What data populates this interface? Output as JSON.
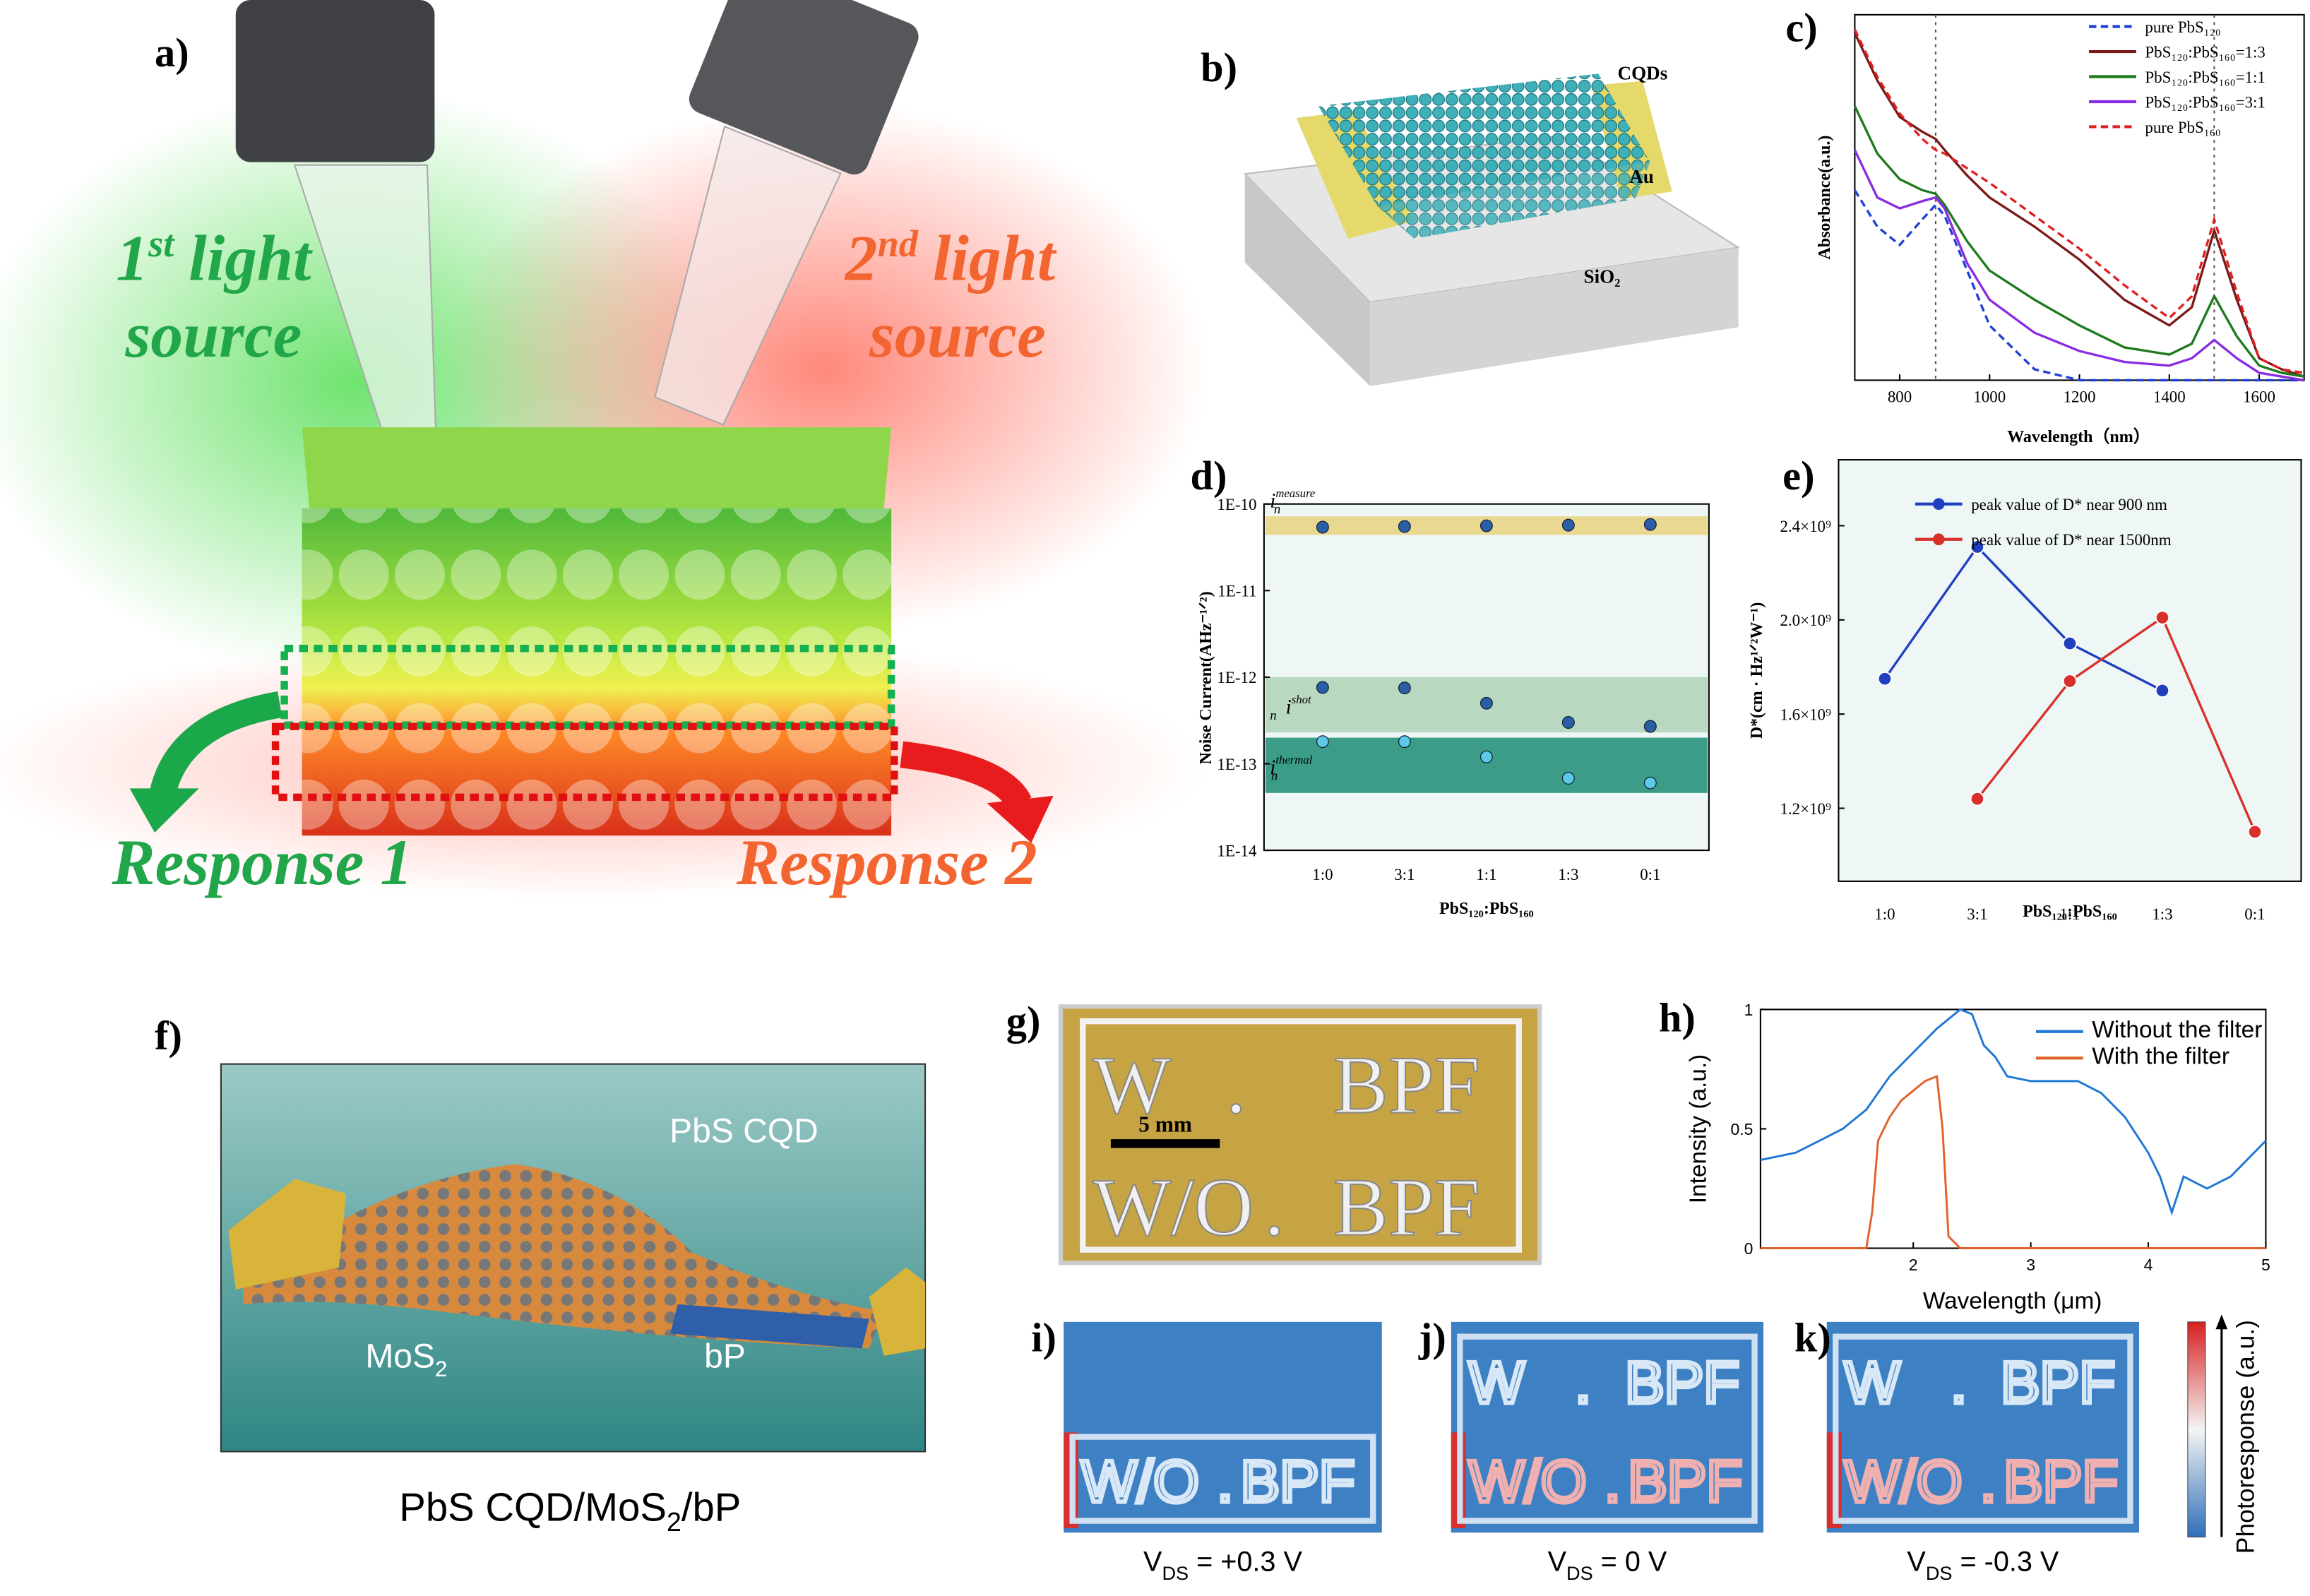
{
  "panels": {
    "a": "a)",
    "b": "b)",
    "f": "f)",
    "g": "g)"
  },
  "panel_a": {
    "source1": {
      "num": "1",
      "sup": "st",
      "line1": "light",
      "line2": "source"
    },
    "source2": {
      "num": "2",
      "sup": "nd",
      "line1": "light",
      "line2": "source"
    },
    "response1": "Response 1",
    "response2": "Response 2"
  },
  "panel_b": {
    "cqds": "CQDs",
    "au": "Au",
    "sio2": "SiO₂"
  },
  "panel_f": {
    "pbs_cqd": "PbS CQD",
    "mos2": {
      "base": "MoS",
      "sub": "2"
    },
    "bp": "bP",
    "caption": {
      "part1": "PbS CQD/MoS",
      "sub": "2",
      "part2": "/bP"
    }
  },
  "panel_g": {
    "row1": [
      "W",
      ".",
      "BPF"
    ],
    "row2": [
      "W/O",
      ".",
      "BPF"
    ],
    "scale": "5 mm"
  },
  "maps": [
    {
      "label": "i)",
      "vds": {
        "base": "V",
        "sub": "DS",
        "rest": " = +0.3 V"
      }
    },
    {
      "label": "j)",
      "vds": {
        "base": "V",
        "sub": "DS",
        "rest": " = 0 V"
      }
    },
    {
      "label": "k)",
      "vds": {
        "base": "V",
        "sub": "DS",
        "rest": " = -0.3 V"
      }
    }
  ],
  "colorbar": "Photoresponse (a.u.)",
  "chart_data": [
    {
      "type": "line",
      "label": "c)",
      "xlabel": "Wavelength（nm）",
      "ylabel": "Absorbance(a.u.)",
      "x": [
        700,
        750,
        800,
        850,
        880,
        900,
        950,
        1000,
        1100,
        1200,
        1300,
        1400,
        1450,
        1500,
        1550,
        1600,
        1650,
        1700
      ],
      "xlim": [
        700,
        1700
      ],
      "xticks": [
        800,
        1000,
        1200,
        1400,
        1600
      ],
      "ylim": [
        0,
        1
      ],
      "vlines": [
        880,
        1500
      ],
      "legend": "upper-right",
      "series": [
        {
          "name": "pure PbS₁₂₀",
          "color": "#1f3fd6",
          "dashed": true,
          "values": [
            0.52,
            0.42,
            0.37,
            0.44,
            0.48,
            0.45,
            0.3,
            0.15,
            0.03,
            0,
            0,
            0,
            0,
            0,
            0,
            0,
            0,
            0
          ]
        },
        {
          "name": "PbS₁₂₀:PbS₁₆₀=1:3",
          "color": "#7a1a1a",
          "dashed": false,
          "values": [
            0.95,
            0.82,
            0.72,
            0.68,
            0.66,
            0.63,
            0.56,
            0.5,
            0.42,
            0.33,
            0.22,
            0.15,
            0.2,
            0.41,
            0.22,
            0.06,
            0.03,
            0.01
          ]
        },
        {
          "name": "PbS₁₂₀:PbS₁₆₀=1:1",
          "color": "#1e7a1e",
          "dashed": false,
          "values": [
            0.75,
            0.62,
            0.55,
            0.52,
            0.51,
            0.48,
            0.38,
            0.3,
            0.22,
            0.15,
            0.09,
            0.07,
            0.1,
            0.23,
            0.12,
            0.04,
            0.02,
            0.01
          ]
        },
        {
          "name": "PbS₁₂₀:PbS₁₆₀=3:1",
          "color": "#8a2be2",
          "dashed": false,
          "values": [
            0.63,
            0.5,
            0.47,
            0.49,
            0.5,
            0.47,
            0.32,
            0.22,
            0.13,
            0.08,
            0.05,
            0.04,
            0.06,
            0.11,
            0.06,
            0.02,
            0.01,
            0
          ]
        },
        {
          "name": "pure PbS₁₆₀",
          "color": "#e02020",
          "dashed": true,
          "values": [
            0.96,
            0.83,
            0.73,
            0.66,
            0.63,
            0.62,
            0.58,
            0.54,
            0.45,
            0.36,
            0.26,
            0.17,
            0.23,
            0.44,
            0.24,
            0.06,
            0.03,
            0.02
          ]
        }
      ]
    },
    {
      "type": "scatter",
      "label": "d)",
      "xlabel": "PbS₁₂₀:PbS₁₆₀",
      "ylabel": "Noise Current(AHz⁻¹ᐟ²)",
      "categories": [
        "1:0",
        "3:1",
        "1:1",
        "1:3",
        "0:1"
      ],
      "log_y": true,
      "ylim": [
        1e-14,
        1e-10
      ],
      "yticks": [
        {
          "value": 1e-10,
          "label": "1E-10"
        },
        {
          "value": 1e-11,
          "label": "1E-11"
        },
        {
          "value": 1e-12,
          "label": "1E-12"
        },
        {
          "value": 1e-13,
          "label": "1E-13"
        },
        {
          "value": 1e-14,
          "label": "1E-14"
        }
      ],
      "bands": [
        {
          "label": {
            "base": "i",
            "sub": "n",
            "sup": "measure"
          },
          "range": [
            4.4e-11,
            7.2e-11
          ],
          "color": "#e9d890"
        },
        {
          "label": {
            "base": "i",
            "sub": "n",
            "sup": "shot"
          },
          "range": [
            2.3e-13,
            1e-12
          ],
          "color": "#b8d8c0"
        },
        {
          "label": {
            "base": "i",
            "sub": "n",
            "sup": "thermal"
          },
          "range": [
            4.6e-14,
            2e-13
          ],
          "color": "#3b9c87"
        }
      ],
      "series": [
        {
          "color": "#2a5fa8",
          "values": [
            5.4e-11,
            5.5e-11,
            5.6e-11,
            5.7e-11,
            5.8e-11
          ]
        },
        {
          "color": "#2a5fa8",
          "values": [
            7.6e-13,
            7.5e-13,
            5e-13,
            3e-13,
            2.7e-13
          ]
        },
        {
          "color": "#5fc8e8",
          "values": [
            1.8e-13,
            1.8e-13,
            1.2e-13,
            6.8e-14,
            6e-14
          ]
        }
      ]
    },
    {
      "type": "line",
      "label": "e)",
      "xlabel": "PbS₁₂₀:PbS₁₆₀",
      "ylabel": "D*(cm · Hz¹ᐟ²W⁻¹)",
      "categories": [
        "1:0",
        "3:1",
        "1:1",
        "1:3",
        "0:1"
      ],
      "ylim": [
        890000000,
        2680000000
      ],
      "yticks": [
        {
          "value": 1200000000,
          "label": "1.2×10⁹"
        },
        {
          "value": 1600000000,
          "label": "1.6×10⁹"
        },
        {
          "value": 2000000000,
          "label": "2.0×10⁹"
        },
        {
          "value": 2400000000,
          "label": "2.4×10⁹"
        }
      ],
      "legend": "upper-right",
      "series": [
        {
          "name": "peak value of D* near 900 nm",
          "color": "#1f3fc0",
          "values": [
            1750000000,
            2310000000,
            1900000000,
            1700000000,
            null
          ]
        },
        {
          "name": "peak value of D* near 1500nm",
          "color": "#d8302a",
          "values": [
            null,
            1240000000,
            1740000000,
            2010000000,
            1100000000
          ]
        }
      ]
    },
    {
      "type": "line",
      "label": "h)",
      "xlabel": "Wavelength (μm)",
      "ylabel": "Intensity (a.u.)",
      "xlim": [
        0.7,
        5
      ],
      "xticks": [
        2,
        3,
        4,
        5
      ],
      "ylim": [
        0,
        1
      ],
      "yticks": [
        0,
        0.5,
        1
      ],
      "legend": "upper-right",
      "series": [
        {
          "name": "Without the filter",
          "color": "#1f77d4",
          "x": [
            0.7,
            1,
            1.2,
            1.4,
            1.6,
            1.8,
            2,
            2.2,
            2.4,
            2.5,
            2.6,
            2.7,
            2.8,
            3,
            3.2,
            3.4,
            3.6,
            3.8,
            4,
            4.1,
            4.2,
            4.3,
            4.5,
            4.7,
            5
          ],
          "values": [
            0.37,
            0.4,
            0.45,
            0.5,
            0.58,
            0.72,
            0.82,
            0.92,
            1,
            0.98,
            0.85,
            0.8,
            0.72,
            0.7,
            0.7,
            0.7,
            0.65,
            0.55,
            0.4,
            0.3,
            0.15,
            0.3,
            0.25,
            0.3,
            0.45
          ]
        },
        {
          "name": "With the filter",
          "color": "#e0622a",
          "x": [
            0.7,
            1.5,
            1.6,
            1.65,
            1.7,
            1.8,
            1.9,
            2,
            2.1,
            2.2,
            2.25,
            2.3,
            2.4,
            5
          ],
          "values": [
            0,
            0,
            0,
            0.15,
            0.45,
            0.55,
            0.62,
            0.66,
            0.7,
            0.72,
            0.5,
            0.05,
            0,
            0
          ]
        }
      ]
    }
  ]
}
